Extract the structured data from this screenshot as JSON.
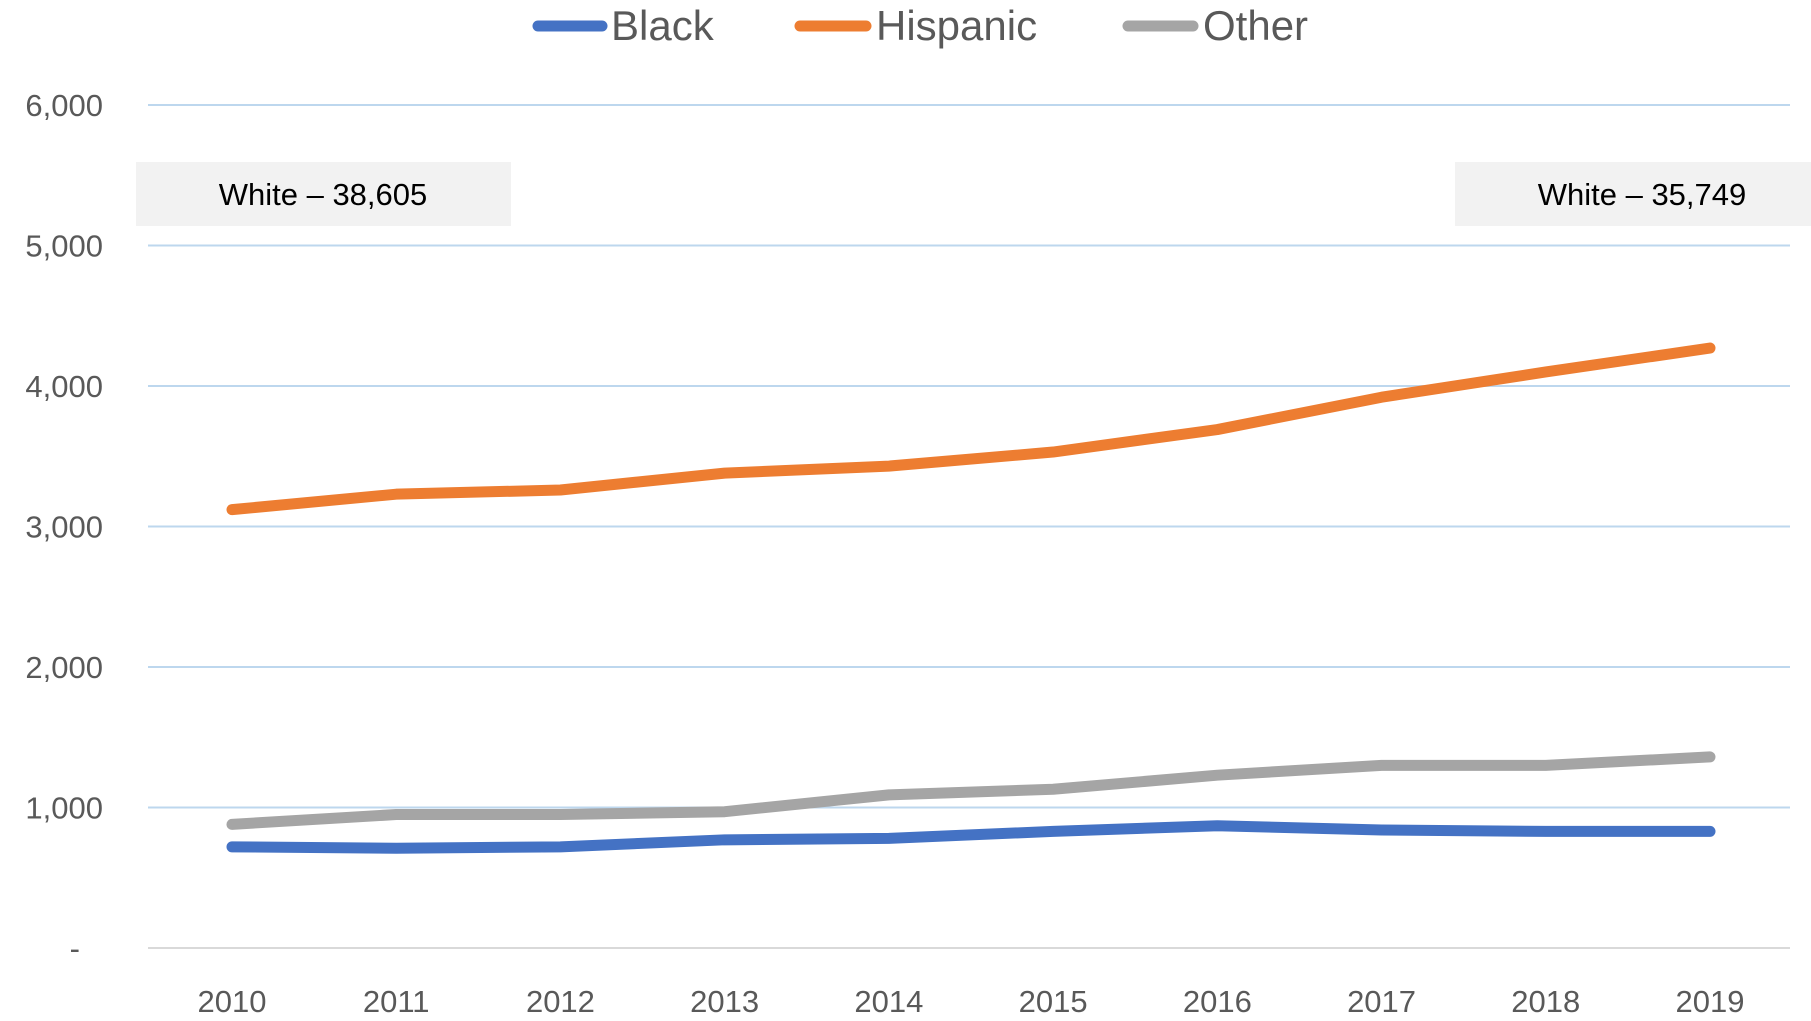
{
  "chart_data": {
    "type": "line",
    "title": "",
    "xlabel": "",
    "ylabel": "",
    "categories": [
      "2010",
      "2011",
      "2012",
      "2013",
      "2014",
      "2015",
      "2016",
      "2017",
      "2018",
      "2019"
    ],
    "ylim": [
      0,
      6000
    ],
    "y_ticks": [
      0,
      1000,
      2000,
      3000,
      4000,
      5000,
      6000
    ],
    "y_tick_labels": [
      "-",
      "1,000",
      "2,000",
      "3,000",
      "4,000",
      "5,000",
      "6,000"
    ],
    "grid": true,
    "legend_position": "top-center",
    "series": [
      {
        "name": "Black",
        "color": "#4472C4",
        "values": [
          720,
          710,
          720,
          770,
          780,
          830,
          870,
          840,
          830,
          830
        ]
      },
      {
        "name": "Hispanic",
        "color": "#ED7D31",
        "values": [
          3120,
          3230,
          3260,
          3380,
          3430,
          3530,
          3690,
          3920,
          4100,
          4270
        ]
      },
      {
        "name": "Other",
        "color": "#A5A5A5",
        "values": [
          880,
          950,
          950,
          970,
          1090,
          1130,
          1230,
          1300,
          1300,
          1360
        ]
      }
    ],
    "annotations": [
      {
        "text": "White – 38,605",
        "anchor": "top-left"
      },
      {
        "text": "White – 35,749",
        "anchor": "top-right"
      }
    ]
  },
  "colors": {
    "gridline": "#BDD7EE",
    "axis_line": "#D9D9D9",
    "tick_text": "#595959",
    "callout_bg": "#F2F2F2"
  }
}
